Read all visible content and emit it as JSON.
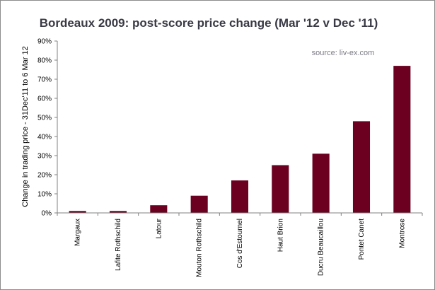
{
  "chart_data": {
    "type": "bar",
    "title": "Bordeaux 2009: post-score price change (Mar '12 v Dec '11)",
    "source_note": "source: liv-ex.com",
    "ylabel": "Change in trading price - 31Dec'11  to 6 Mar 12",
    "xlabel": "",
    "categories": [
      "Margaux",
      "Lafite Rothschild",
      "Latour",
      "Mouton Rothschild",
      "Cos d'Estournel",
      "Haut Brion",
      "Ducru Beaucaillou",
      "Pontet Canet",
      "Montrose"
    ],
    "values": [
      1,
      1,
      4,
      9,
      17,
      25,
      31,
      48,
      77
    ],
    "ylim": [
      0,
      90
    ],
    "yticks": [
      0,
      10,
      20,
      30,
      40,
      50,
      60,
      70,
      80,
      90
    ],
    "ytick_labels": [
      "0%",
      "10%",
      "20%",
      "30%",
      "40%",
      "50%",
      "60%",
      "70%",
      "80%",
      "90%"
    ],
    "grid": false,
    "legend": "none",
    "bar_color": "#6b0020"
  }
}
